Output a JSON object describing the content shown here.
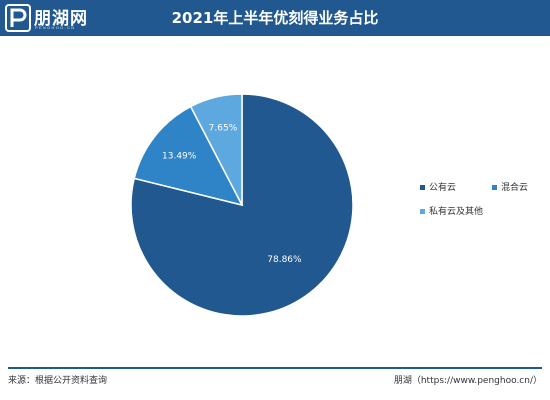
{
  "header": {
    "logo_text": "朋湖网",
    "logo_subtext": "PENGHOO.CN",
    "background_color": "#20588f"
  },
  "chart_data": {
    "type": "pie",
    "title": "2021年上半年优刻得业务占比",
    "categories": [
      "公有云",
      "混合云",
      "私有云及其他"
    ],
    "values": [
      78.86,
      13.49,
      7.65
    ],
    "labels": [
      "78.86%",
      "13.49%",
      "7.65%"
    ],
    "colors": [
      "#20588f",
      "#2e84c6",
      "#5ea8e0"
    ],
    "legend_position": "right"
  },
  "footer": {
    "source": "来源：根据公开资料查询",
    "credit": "朋湖（https://www.penghoo.cn/）"
  }
}
